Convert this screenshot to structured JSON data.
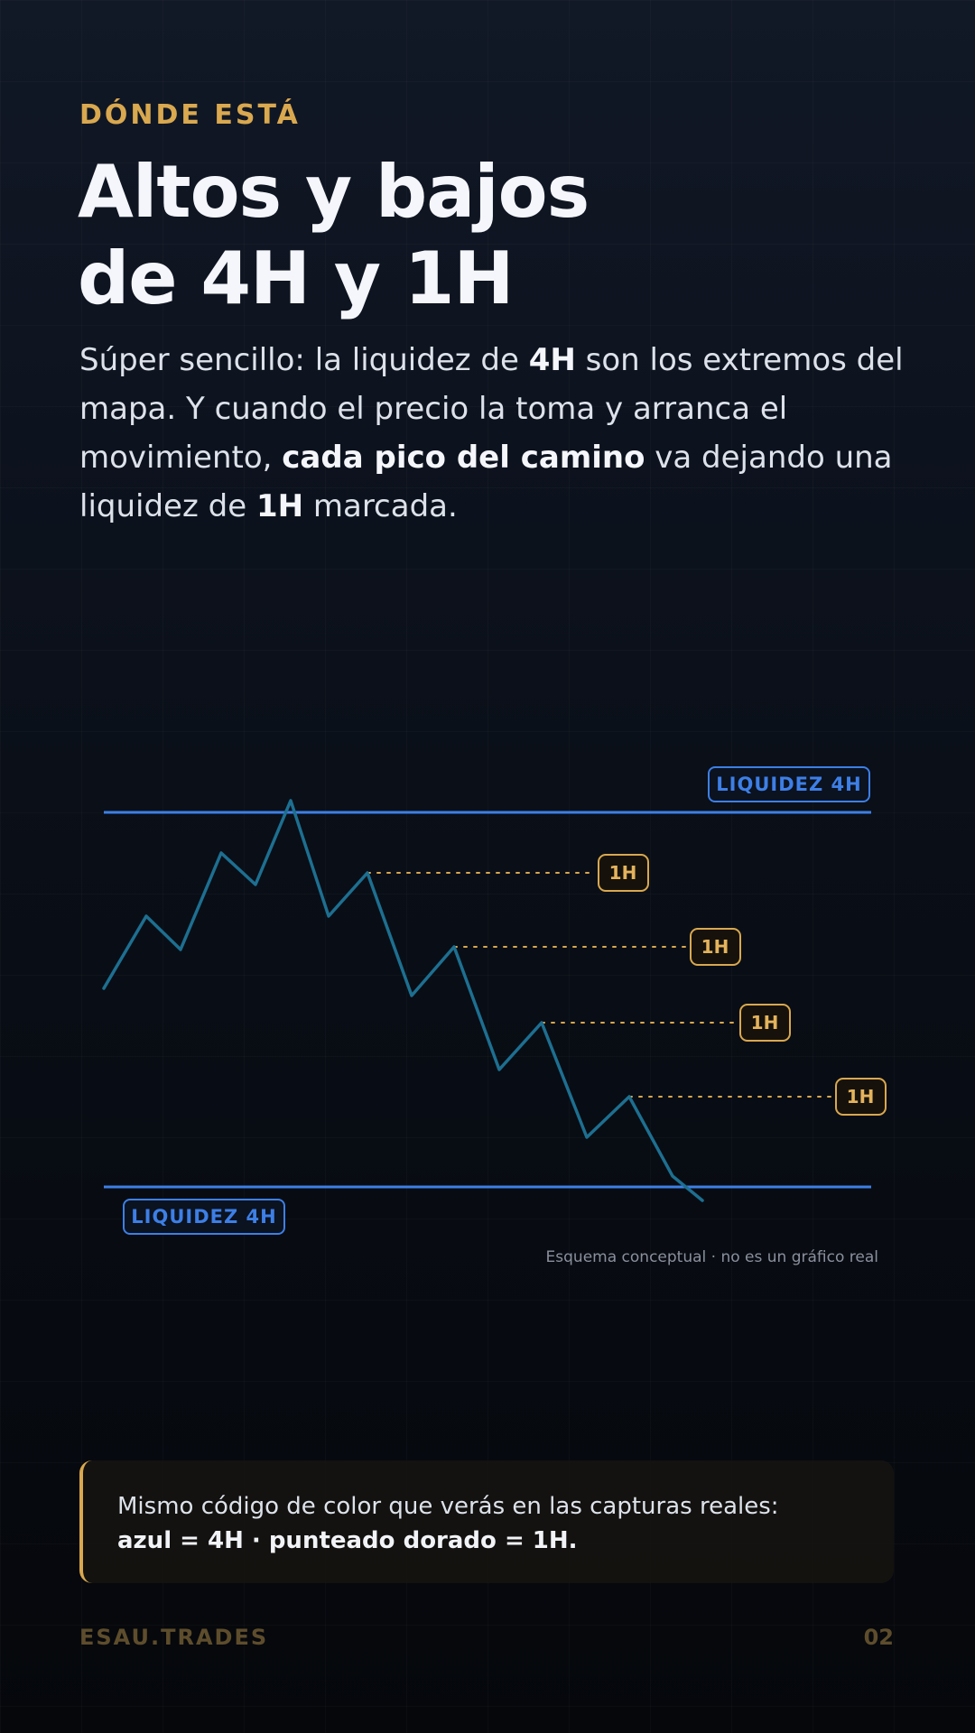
{
  "header": {
    "eyebrow": "DÓNDE ESTÁ",
    "title_line1": "Altos y bajos",
    "title_line2": "de 4H y 1H"
  },
  "intro": {
    "p1": "Súper sencillo: la liquidez de ",
    "b1": "4H",
    "p2": " son los extremos del mapa. Y cuando el precio la toma y arranca el movimiento, ",
    "b2": "cada pico del camino",
    "p3": " va dejando una liquidez de ",
    "b3": "1H",
    "p4": " marcada."
  },
  "diagram": {
    "top_label": "LIQUIDEZ 4H",
    "bottom_label": "LIQUIDEZ 4H",
    "level_label": "1H",
    "note": "Esquema conceptual · no es un gráfico real",
    "colors": {
      "liquidity_4h": "#3d7fe6",
      "liquidity_1h": "#e4b35c",
      "price": "#1d6f90"
    }
  },
  "callout": {
    "line1": "Mismo código de color que verás en las capturas reales:",
    "line2": "azul = 4H · punteado dorado = 1H."
  },
  "footer": {
    "brand": "ESAU.TRADES",
    "page": "02"
  }
}
